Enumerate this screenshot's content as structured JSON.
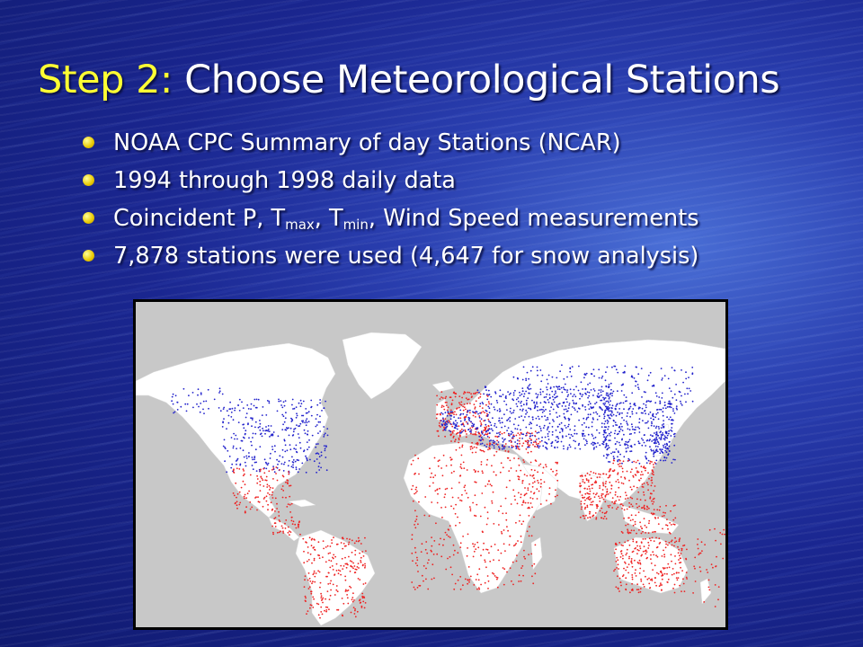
{
  "slide": {
    "title_step": "Step 2:",
    "title_rest": "Choose Meteorological Stations",
    "bullets": {
      "b1": "NOAA CPC Summary of day Stations (NCAR)",
      "b2": "1994 through 1998 daily data",
      "b3_a": "Coincident P, T",
      "b3_sub1": "max",
      "b3_b": ", T",
      "b3_sub2": "min",
      "b3_c": ", Wind Speed measurements",
      "b4": "7,878 stations were used (4,647 for snow analysis)"
    }
  },
  "map": {
    "colors": {
      "ocean": "#c8c8c8",
      "land": "#ffffff",
      "snow_stations": "#2222cc",
      "other_stations": "#ee2222"
    }
  }
}
